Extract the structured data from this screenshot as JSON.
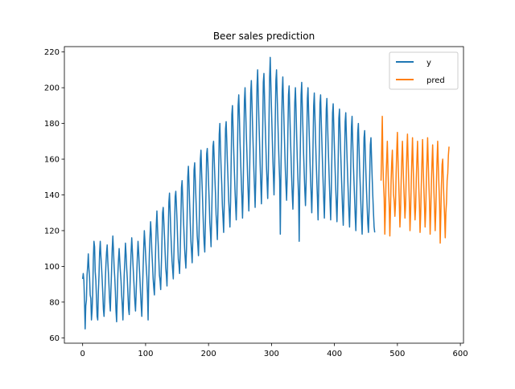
{
  "chart_data": {
    "type": "line",
    "title": "Beer sales prediction",
    "xlabel": "",
    "ylabel": "",
    "xlim": [
      -29,
      605
    ],
    "ylim": [
      57,
      223
    ],
    "xticks": [
      0,
      100,
      200,
      300,
      400,
      500,
      600
    ],
    "yticks": [
      60,
      80,
      100,
      120,
      140,
      160,
      180,
      200,
      220
    ],
    "grid": false,
    "legend_position": "top-right",
    "series": [
      {
        "name": "y",
        "color": "#1f77b4",
        "x_start": 0,
        "x_step": 1,
        "values": [
          93,
          96,
          92,
          80,
          65,
          78,
          81,
          95,
          100,
          107,
          99,
          94,
          84,
          82,
          70,
          75,
          85,
          104,
          114,
          111,
          97,
          92,
          82,
          72,
          70,
          86,
          95,
          108,
          114,
          106,
          100,
          93,
          85,
          76,
          72,
          80,
          92,
          101,
          108,
          112,
          103,
          96,
          88,
          80,
          75,
          87,
          98,
          110,
          117,
          109,
          100,
          94,
          86,
          75,
          69,
          83,
          96,
          104,
          110,
          103,
          97,
          92,
          84,
          78,
          70,
          82,
          95,
          103,
          113,
          107,
          99,
          93,
          84,
          76,
          73,
          85,
          98,
          108,
          116,
          109,
          101,
          94,
          87,
          80,
          75,
          85,
          96,
          106,
          114,
          108,
          100,
          93,
          85,
          78,
          72,
          86,
          98,
          110,
          120,
          114,
          107,
          100,
          94,
          85,
          70,
          92,
          107,
          117,
          125,
          118,
          108,
          101,
          93,
          88,
          84,
          96,
          110,
          123,
          131,
          121,
          113,
          104,
          95,
          92,
          87,
          100,
          114,
          130,
          133,
          125,
          117,
          108,
          99,
          95,
          89,
          104,
          119,
          136,
          141,
          131,
          120,
          111,
          103,
          98,
          93,
          107,
          122,
          139,
          142,
          134,
          125,
          114,
          104,
          101,
          96,
          108,
          125,
          144,
          148,
          138,
          128,
          119,
          110,
          104,
          99,
          110,
          128,
          150,
          156,
          146,
          135,
          124,
          114,
          108,
          102,
          115,
          134,
          154,
          158,
          148,
          138,
          128,
          117,
          112,
          106,
          120,
          140,
          160,
          165,
          153,
          143,
          132,
          121,
          113,
          108,
          124,
          143,
          163,
          166,
          158,
          147,
          137,
          125,
          119,
          111,
          128,
          147,
          167,
          170,
          160,
          150,
          141,
          129,
          123,
          115,
          132,
          152,
          174,
          180,
          166,
          155,
          146,
          134,
          127,
          119,
          135,
          156,
          177,
          181,
          170,
          158,
          148,
          137,
          130,
          122,
          136,
          160,
          185,
          190,
          177,
          165,
          154,
          143,
          134,
          126,
          140,
          165,
          190,
          196,
          184,
          170,
          159,
          148,
          138,
          127,
          142,
          168,
          193,
          200,
          188,
          174,
          163,
          151,
          141,
          131,
          145,
          170,
          197,
          204,
          191,
          178,
          166,
          154,
          144,
          133,
          148,
          174,
          201,
          210,
          196,
          182,
          170,
          157,
          146,
          135,
          150,
          176,
          203,
          208,
          194,
          180,
          168,
          156,
          147,
          138,
          154,
          180,
          206,
          217,
          202,
          188,
          175,
          162,
          151,
          140,
          156,
          182,
          204,
          210,
          196,
          183,
          170,
          158,
          148,
          118,
          152,
          176,
          198,
          206,
          192,
          179,
          166,
          154,
          145,
          137,
          151,
          174,
          196,
          201,
          187,
          174,
          162,
          150,
          140,
          132,
          146,
          170,
          192,
          200,
          188,
          173,
          160,
          149,
          139,
          114,
          148,
          171,
          196,
          203,
          189,
          176,
          163,
          152,
          142,
          134,
          147,
          170,
          194,
          200,
          186,
          173,
          161,
          149,
          140,
          130,
          145,
          168,
          190,
          197,
          184,
          171,
          159,
          148,
          138,
          126,
          144,
          167,
          191,
          196,
          182,
          170,
          158,
          147,
          137,
          127,
          143,
          165,
          188,
          194,
          181,
          168,
          157,
          146,
          136,
          126,
          142,
          163,
          186,
          191,
          178,
          166,
          155,
          144,
          134,
          125,
          140,
          161,
          183,
          188,
          175,
          163,
          152,
          141,
          131,
          123,
          139,
          159,
          181,
          186,
          173,
          161,
          150,
          140,
          130,
          122,
          137,
          157,
          178,
          184,
          170,
          158,
          148,
          138,
          128,
          120,
          135,
          155,
          175,
          180,
          167,
          155,
          145,
          135,
          126,
          118,
          133,
          152,
          172,
          176,
          164,
          152,
          142,
          133,
          124,
          119,
          131,
          150,
          168,
          172,
          160,
          149,
          139,
          130,
          122,
          119
        ]
      },
      {
        "name": "pred",
        "color": "#ff7f0e",
        "x_start": 474,
        "x_step": 1,
        "values": [
          148,
          165,
          184,
          158,
          146,
          138,
          118,
          132,
          150,
          160,
          170,
          155,
          144,
          134,
          117,
          131,
          148,
          158,
          165,
          150,
          140,
          136,
          128,
          135,
          152,
          165,
          175,
          160,
          148,
          136,
          122,
          131,
          148,
          160,
          170,
          157,
          146,
          137,
          127,
          134,
          150,
          164,
          174,
          160,
          148,
          136,
          120,
          130,
          147,
          160,
          172,
          157,
          145,
          135,
          126,
          133,
          149,
          160,
          170,
          156,
          144,
          134,
          119,
          129,
          146,
          159,
          171,
          156,
          144,
          134,
          122,
          131,
          148,
          160,
          172,
          158,
          146,
          136,
          118,
          130,
          146,
          158,
          168,
          154,
          142,
          132,
          120,
          130,
          147,
          160,
          170,
          156,
          145,
          135,
          113,
          129,
          146,
          157,
          160,
          147,
          137,
          128,
          116,
          130,
          136,
          148,
          152,
          162,
          167
        ]
      }
    ]
  }
}
